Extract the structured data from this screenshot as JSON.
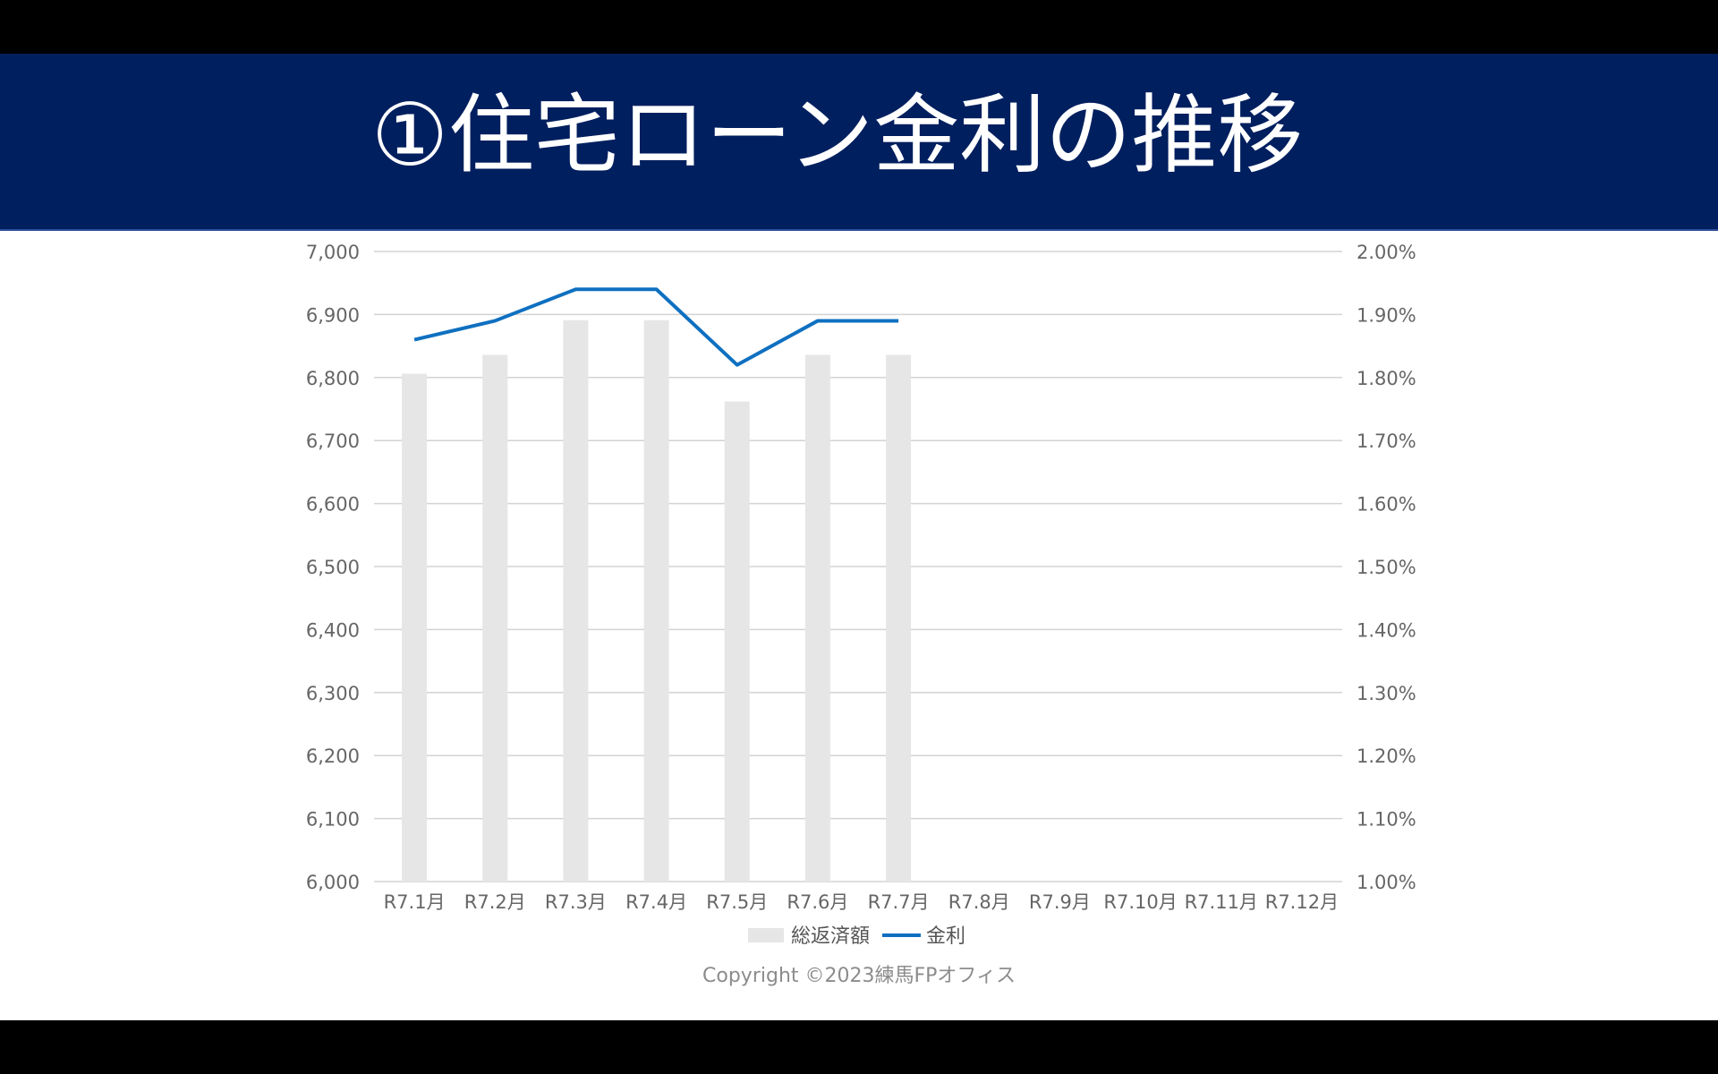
{
  "slide": {
    "title": "①住宅ローン金利の推移",
    "copyright": "Copyright ©2023練馬FPオフィス"
  },
  "colors": {
    "title_bar": "#001f5f",
    "bar": "#e6e6e6",
    "line": "#0f70c0",
    "grid": "#d3d3d3"
  },
  "chart_data": {
    "type": "bar",
    "categories": [
      "R7.1月",
      "R7.2月",
      "R7.3月",
      "R7.4月",
      "R7.5月",
      "R7.6月",
      "R7.7月",
      "R7.8月",
      "R7.9月",
      "R7.10月",
      "R7.11月",
      "R7.12月"
    ],
    "series": [
      {
        "name": "総返済額",
        "type": "bar",
        "axis": "left",
        "values": [
          6806,
          6836,
          6891,
          6891,
          6762,
          6836,
          6836,
          null,
          null,
          null,
          null,
          null
        ]
      },
      {
        "name": "金利",
        "type": "line",
        "axis": "right",
        "values": [
          1.86,
          1.89,
          1.94,
          1.94,
          1.82,
          1.89,
          1.89,
          null,
          null,
          null,
          null,
          null
        ]
      }
    ],
    "y_left": {
      "min": 6000,
      "max": 7000,
      "step": 100,
      "tick_labels": [
        "6,000",
        "6,100",
        "6,200",
        "6,300",
        "6,400",
        "6,500",
        "6,600",
        "6,700",
        "6,800",
        "6,900",
        "7,000"
      ]
    },
    "y_right": {
      "min": 1.0,
      "max": 2.0,
      "step": 0.1,
      "tick_labels": [
        "1.00%",
        "1.10%",
        "1.20%",
        "1.30%",
        "1.40%",
        "1.50%",
        "1.60%",
        "1.70%",
        "1.80%",
        "1.90%",
        "2.00%"
      ]
    },
    "grid": true,
    "legend": "bottom",
    "legend_entries": [
      "総返済額",
      "金利"
    ]
  }
}
